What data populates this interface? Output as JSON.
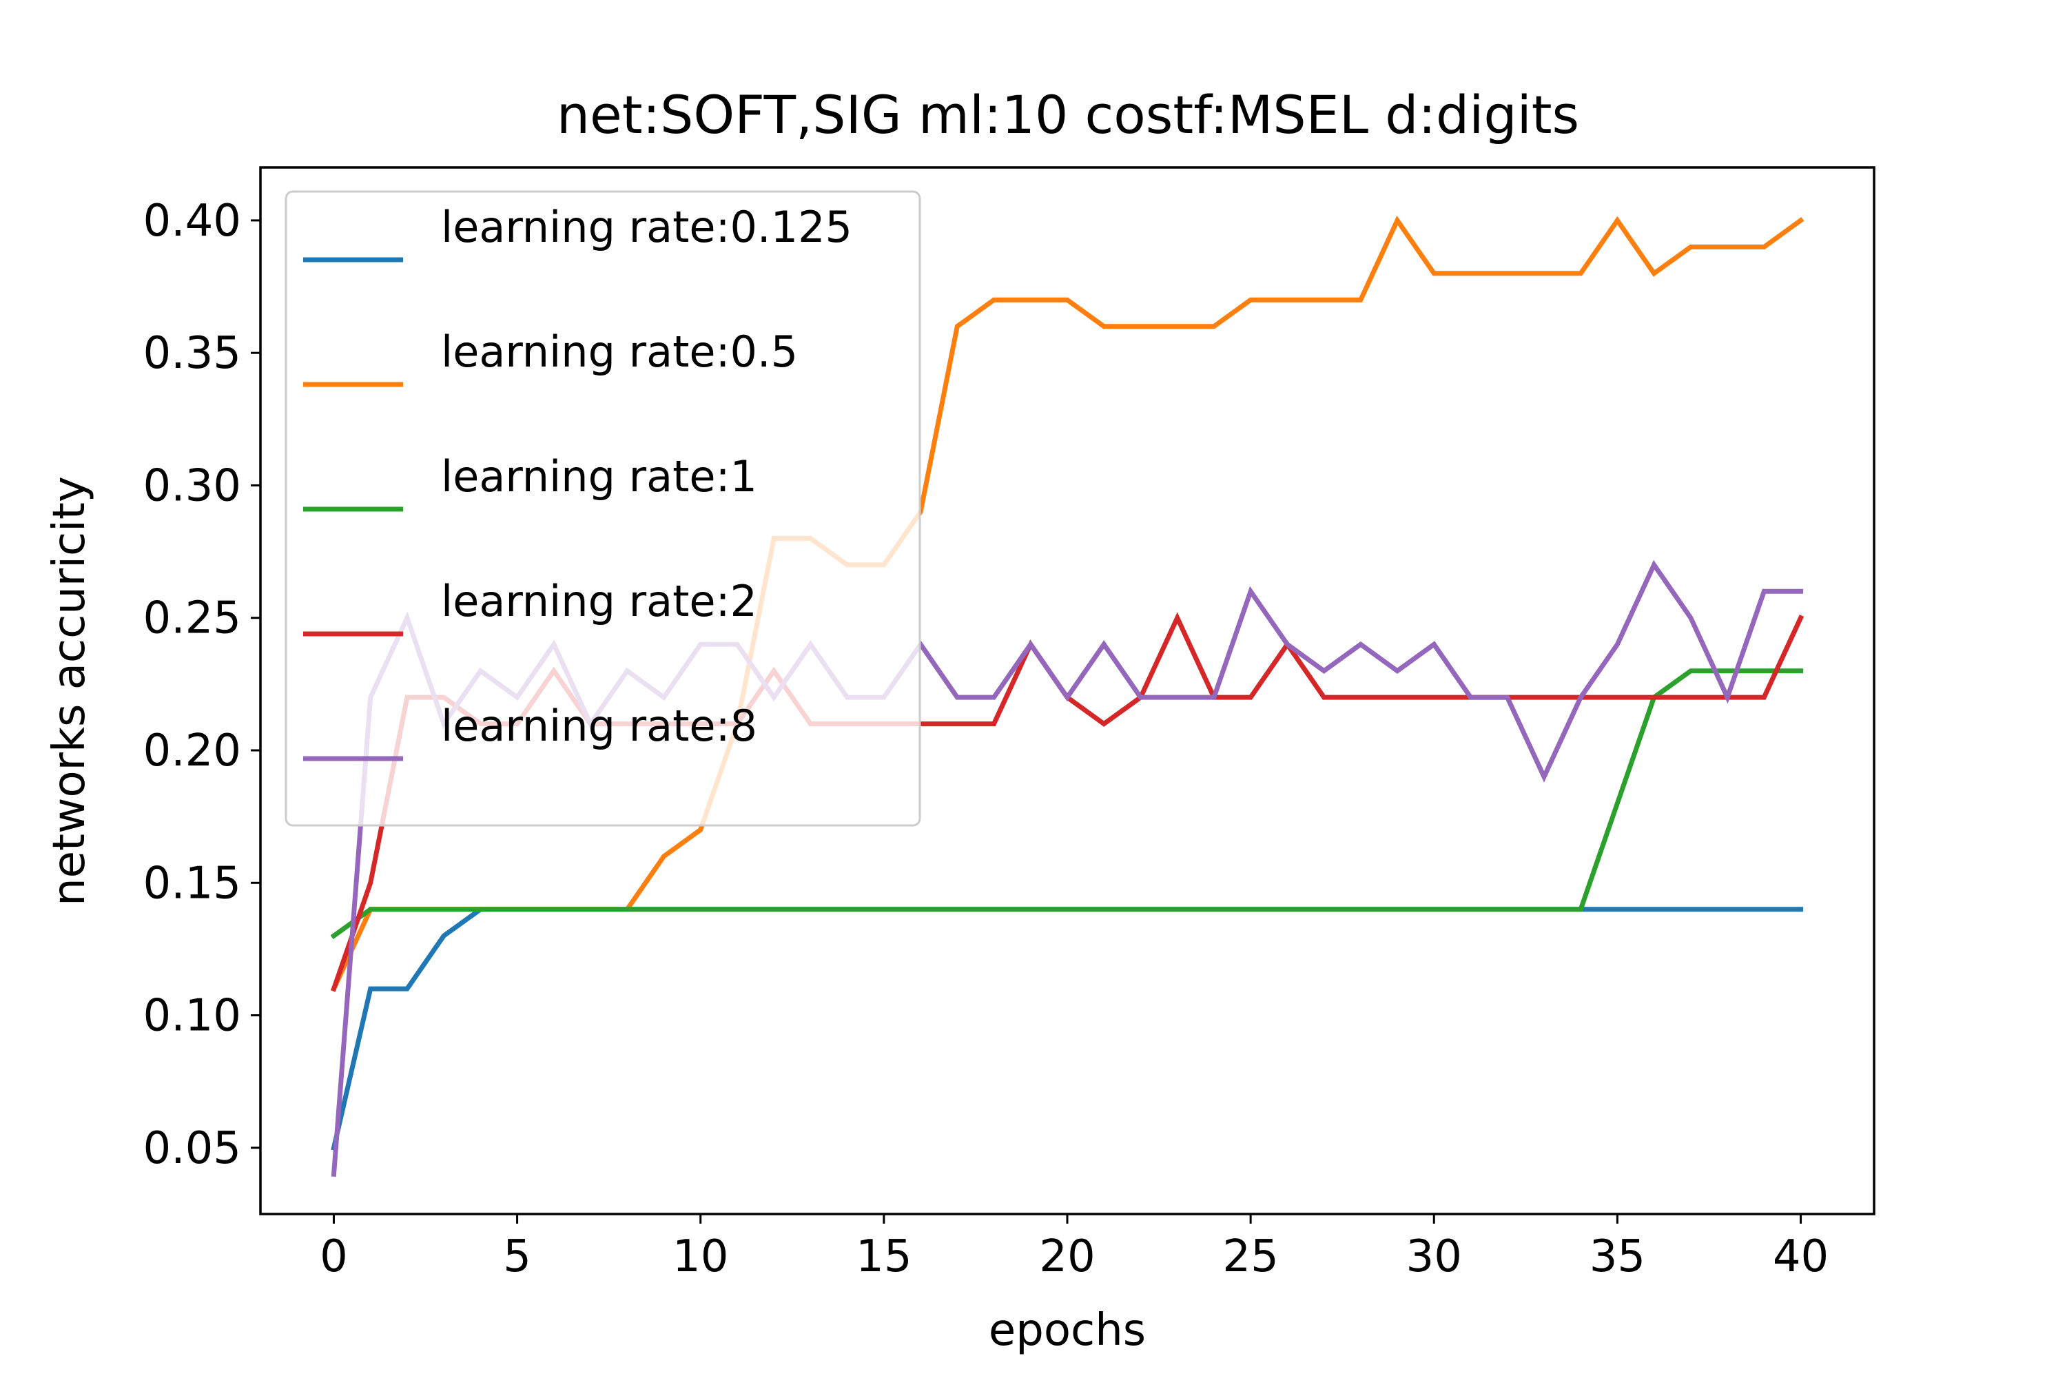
{
  "chart_data": {
    "type": "line",
    "title": "net:SOFT,SIG ml:10 costf:MSEL d:digits",
    "xlabel": "epochs",
    "ylabel": "networks accuricity",
    "xlim": [
      -2,
      42
    ],
    "ylim": [
      0.025,
      0.42
    ],
    "xticks": [
      0,
      5,
      10,
      15,
      20,
      25,
      30,
      35,
      40
    ],
    "xtick_labels": [
      "0",
      "5",
      "10",
      "15",
      "20",
      "25",
      "30",
      "35",
      "40"
    ],
    "yticks": [
      0.05,
      0.1,
      0.15,
      0.2,
      0.25,
      0.3,
      0.35,
      0.4
    ],
    "ytick_labels": [
      "0.05",
      "0.10",
      "0.15",
      "0.20",
      "0.25",
      "0.30",
      "0.35",
      "0.40"
    ],
    "grid": false,
    "legend_position": "upper-left",
    "x": [
      0,
      1,
      2,
      3,
      4,
      5,
      6,
      7,
      8,
      9,
      10,
      11,
      12,
      13,
      14,
      15,
      16,
      17,
      18,
      19,
      20,
      21,
      22,
      23,
      24,
      25,
      26,
      27,
      28,
      29,
      30,
      31,
      32,
      33,
      34,
      35,
      36,
      37,
      38,
      39,
      40
    ],
    "series": [
      {
        "name": "learning rate:0.125",
        "color": "#1f77b4",
        "values": [
          0.05,
          0.11,
          0.11,
          0.13,
          0.14,
          0.14,
          0.14,
          0.14,
          0.14,
          0.14,
          0.14,
          0.14,
          0.14,
          0.14,
          0.14,
          0.14,
          0.14,
          0.14,
          0.14,
          0.14,
          0.14,
          0.14,
          0.14,
          0.14,
          0.14,
          0.14,
          0.14,
          0.14,
          0.14,
          0.14,
          0.14,
          0.14,
          0.14,
          0.14,
          0.14,
          0.14,
          0.14,
          0.14,
          0.14,
          0.14,
          0.14
        ]
      },
      {
        "name": "learning rate:0.5",
        "color": "#ff7f0e",
        "values": [
          0.11,
          0.14,
          0.14,
          0.14,
          0.14,
          0.14,
          0.14,
          0.14,
          0.14,
          0.16,
          0.17,
          0.21,
          0.28,
          0.28,
          0.27,
          0.27,
          0.29,
          0.36,
          0.37,
          0.37,
          0.37,
          0.36,
          0.36,
          0.36,
          0.36,
          0.37,
          0.37,
          0.37,
          0.37,
          0.4,
          0.38,
          0.38,
          0.38,
          0.38,
          0.38,
          0.4,
          0.38,
          0.39,
          0.39,
          0.39,
          0.4
        ]
      },
      {
        "name": "learning rate:1",
        "color": "#2ca02c",
        "values": [
          0.13,
          0.14,
          0.14,
          0.14,
          0.14,
          0.14,
          0.14,
          0.14,
          0.14,
          0.14,
          0.14,
          0.14,
          0.14,
          0.14,
          0.14,
          0.14,
          0.14,
          0.14,
          0.14,
          0.14,
          0.14,
          0.14,
          0.14,
          0.14,
          0.14,
          0.14,
          0.14,
          0.14,
          0.14,
          0.14,
          0.14,
          0.14,
          0.14,
          0.14,
          0.14,
          0.18,
          0.22,
          0.23,
          0.23,
          0.23,
          0.23
        ]
      },
      {
        "name": "learning rate:2",
        "color": "#d62728",
        "values": [
          0.11,
          0.15,
          0.22,
          0.22,
          0.21,
          0.21,
          0.23,
          0.21,
          0.21,
          0.21,
          0.21,
          0.21,
          0.23,
          0.21,
          0.21,
          0.21,
          0.21,
          0.21,
          0.21,
          0.24,
          0.22,
          0.21,
          0.22,
          0.25,
          0.22,
          0.22,
          0.24,
          0.22,
          0.22,
          0.22,
          0.22,
          0.22,
          0.22,
          0.22,
          0.22,
          0.22,
          0.22,
          0.22,
          0.22,
          0.22,
          0.25
        ]
      },
      {
        "name": "learning rate:8",
        "color": "#9467bd",
        "values": [
          0.04,
          0.22,
          0.25,
          0.21,
          0.23,
          0.22,
          0.24,
          0.21,
          0.23,
          0.22,
          0.24,
          0.24,
          0.22,
          0.24,
          0.22,
          0.22,
          0.24,
          0.22,
          0.22,
          0.24,
          0.22,
          0.24,
          0.22,
          0.22,
          0.22,
          0.26,
          0.24,
          0.23,
          0.24,
          0.23,
          0.24,
          0.22,
          0.22,
          0.19,
          0.22,
          0.24,
          0.27,
          0.25,
          0.22,
          0.26,
          0.26
        ]
      }
    ]
  }
}
